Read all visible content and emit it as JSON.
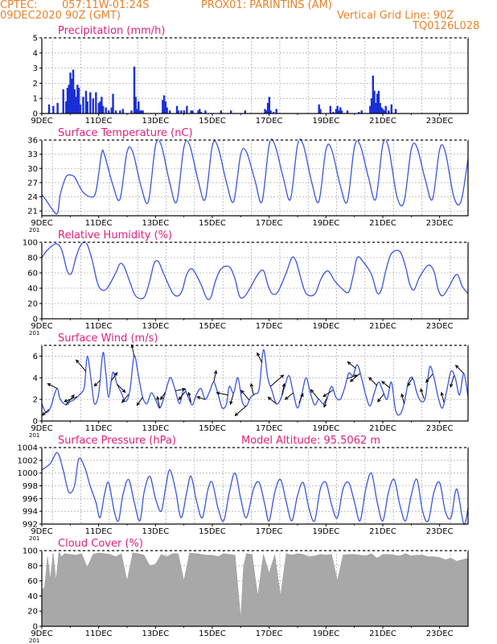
{
  "header": {
    "source": "CPTEC:",
    "coords": "057:11W-01:24S",
    "location": "PROX01: PARINTINS (AM)",
    "datetime": "09DEC2020 90Z (GMT)",
    "grid_note": "Vertical Grid Line: 90Z",
    "code": "TQ0126L028"
  },
  "colors": {
    "line": "#3a55e0",
    "bar": "#1a2fd6",
    "cloud": "#a8a8a8",
    "title": "#e0207a",
    "header": "#e8822a"
  },
  "x_tick_labels": [
    "9DEC",
    "11DEC",
    "13DEC",
    "15DEC",
    "17DEC",
    "19DEC",
    "21DEC",
    "23DEC"
  ],
  "x_fragment": "201",
  "chart_data": [
    {
      "type": "bar",
      "title": "Precipitation (mm/h)",
      "ylim": [
        0,
        5
      ],
      "yticks": [
        0,
        1,
        2,
        3,
        4,
        5
      ],
      "grid": true,
      "x_unit": "days since 09DEC 00Z",
      "x_range": [
        0,
        15
      ],
      "x": [
        0.25,
        0.4,
        0.55,
        0.75,
        0.85,
        0.9,
        0.95,
        1.0,
        1.05,
        1.1,
        1.15,
        1.2,
        1.25,
        1.3,
        1.35,
        1.45,
        1.55,
        1.6,
        1.7,
        1.8,
        1.9,
        2.0,
        2.05,
        2.1,
        2.15,
        2.25,
        2.35,
        2.45,
        2.5,
        2.6,
        2.75,
        2.85,
        3.15,
        3.25,
        3.3,
        3.35,
        3.4,
        3.45,
        3.5,
        3.55,
        4.25,
        4.3,
        4.35,
        4.4,
        4.5,
        4.75,
        4.8,
        4.9,
        5.0,
        5.1,
        5.25,
        5.3,
        5.5,
        5.55,
        5.6,
        5.75,
        6.3,
        6.65,
        7.15,
        7.85,
        7.9,
        7.95,
        8.0,
        8.05,
        8.15,
        8.25,
        9.75,
        9.8,
        10.15,
        10.25,
        10.35,
        10.4,
        10.45,
        10.5,
        10.55,
        10.75,
        11.15,
        11.25,
        11.55,
        11.6,
        11.65,
        11.7,
        11.75,
        11.8,
        11.85,
        11.9,
        11.95,
        12.0,
        12.05,
        12.1,
        12.2,
        12.3,
        12.45
      ],
      "values": [
        0.6,
        0.5,
        0.7,
        1.6,
        0.8,
        1.7,
        1.9,
        2.7,
        2.3,
        2.9,
        1.6,
        1.1,
        1.9,
        1.7,
        0.6,
        1.1,
        1.5,
        0.8,
        1.4,
        1.0,
        1.4,
        0.7,
        0.8,
        1.1,
        0.5,
        0.4,
        0.2,
        0.4,
        1.3,
        0.2,
        0.2,
        0.3,
        0.2,
        3.1,
        1.1,
        0.3,
        0.8,
        0.2,
        0.2,
        0.2,
        0.9,
        1.2,
        0.8,
        0.4,
        0.2,
        0.5,
        0.2,
        0.2,
        0.2,
        0.5,
        0.2,
        0.2,
        0.2,
        0.3,
        0.1,
        0.2,
        0.2,
        0.2,
        0.2,
        0.3,
        0.2,
        0.7,
        1.1,
        0.2,
        0.1,
        0.3,
        0.6,
        0.3,
        0.5,
        0.1,
        0.3,
        0.5,
        0.2,
        0.4,
        0.2,
        0.2,
        0.1,
        0.2,
        0.5,
        1.0,
        2.5,
        1.5,
        0.7,
        1.3,
        1.5,
        0.7,
        0.4,
        0.3,
        0.2,
        0.5,
        0.2,
        0.6,
        0.3
      ]
    },
    {
      "type": "line",
      "title": "Surface Temperature (nC)",
      "ylim": [
        20,
        36
      ],
      "yticks": [
        21,
        24,
        27,
        30,
        33,
        36
      ],
      "grid": true,
      "x_unit": "days since 09DEC 00Z",
      "x": [
        0.0,
        0.15,
        0.35,
        0.55,
        0.65,
        0.85,
        1.0,
        1.15,
        1.3,
        1.45,
        1.7,
        1.9,
        2.1,
        2.2,
        2.5,
        2.75,
        3.0,
        3.2,
        3.5,
        3.75,
        4.0,
        4.2,
        4.5,
        4.75,
        5.0,
        5.2,
        5.5,
        5.75,
        6.0,
        6.2,
        6.5,
        6.75,
        7.0,
        7.2,
        7.5,
        7.75,
        8.0,
        8.2,
        8.5,
        8.75,
        9.0,
        9.2,
        9.5,
        9.75,
        10.0,
        10.2,
        10.5,
        10.75,
        11.0,
        11.2,
        11.5,
        11.75,
        12.0,
        12.2,
        12.5,
        12.75,
        13.0,
        13.2,
        13.5,
        13.75,
        14.0,
        14.2,
        14.5,
        14.75,
        15.0
      ],
      "values": [
        24.5,
        23.3,
        21.5,
        20.5,
        24.5,
        28.2,
        28.6,
        28.2,
        26.5,
        25.0,
        24.0,
        25.0,
        33.0,
        33.0,
        26.5,
        23.5,
        33.5,
        33.5,
        26.0,
        23.0,
        34.8,
        35.0,
        27.0,
        23.0,
        34.5,
        35.0,
        27.5,
        23.5,
        34.8,
        34.5,
        27.0,
        23.0,
        33.0,
        33.5,
        27.5,
        23.0,
        35.0,
        35.0,
        28.0,
        23.5,
        35.0,
        35.0,
        27.0,
        23.0,
        34.0,
        34.0,
        26.5,
        23.0,
        34.5,
        35.0,
        28.0,
        23.5,
        35.0,
        34.5,
        24.0,
        23.0,
        34.0,
        34.5,
        27.5,
        23.5,
        34.0,
        33.5,
        24.0,
        23.0,
        32.0
      ]
    },
    {
      "type": "line",
      "title": "Relative Humidity (%)",
      "ylim": [
        0,
        100
      ],
      "yticks": [
        0,
        20,
        40,
        60,
        80,
        100
      ],
      "grid": true,
      "x_unit": "days since 09DEC 00Z",
      "x": [
        0.0,
        0.2,
        0.5,
        0.7,
        0.9,
        1.05,
        1.2,
        1.35,
        1.55,
        1.75,
        1.95,
        2.1,
        2.3,
        2.6,
        2.75,
        2.9,
        3.1,
        3.3,
        3.6,
        3.8,
        3.95,
        4.1,
        4.3,
        4.6,
        4.8,
        4.95,
        5.1,
        5.3,
        5.6,
        5.8,
        5.95,
        6.1,
        6.3,
        6.6,
        6.8,
        6.95,
        7.1,
        7.3,
        7.6,
        7.8,
        7.95,
        8.1,
        8.3,
        8.6,
        8.8,
        8.95,
        9.1,
        9.3,
        9.6,
        9.8,
        9.95,
        10.1,
        10.3,
        10.6,
        10.8,
        10.95,
        11.1,
        11.3,
        11.6,
        11.8,
        11.95,
        12.1,
        12.3,
        12.6,
        12.8,
        12.95,
        13.1,
        13.3,
        13.6,
        13.8,
        13.95,
        14.1,
        14.3,
        14.6,
        14.8,
        15.0
      ],
      "values": [
        80,
        90,
        98,
        90,
        62,
        60,
        80,
        95,
        100,
        80,
        48,
        38,
        40,
        60,
        72,
        68,
        48,
        30,
        28,
        50,
        72,
        75,
        58,
        34,
        30,
        38,
        58,
        65,
        45,
        27,
        28,
        48,
        65,
        68,
        52,
        30,
        28,
        38,
        58,
        63,
        45,
        33,
        35,
        60,
        80,
        75,
        55,
        33,
        32,
        50,
        60,
        62,
        50,
        38,
        35,
        55,
        80,
        75,
        58,
        34,
        38,
        62,
        85,
        88,
        68,
        45,
        38,
        55,
        70,
        62,
        38,
        30,
        40,
        58,
        42,
        33
      ]
    },
    {
      "type": "line",
      "title": "Surface Wind (m/s)",
      "ylim": [
        0,
        7
      ],
      "yticks": [
        0,
        2,
        4,
        6
      ],
      "grid": true,
      "x_unit": "days since 09DEC 00Z",
      "x": [
        0.0,
        0.15,
        0.3,
        0.45,
        0.55,
        0.65,
        0.85,
        1.0,
        1.15,
        1.35,
        1.5,
        1.6,
        1.75,
        1.85,
        2.0,
        2.15,
        2.25,
        2.35,
        2.5,
        2.65,
        2.8,
        2.95,
        3.1,
        3.25,
        3.4,
        3.55,
        3.7,
        3.85,
        4.0,
        4.15,
        4.3,
        4.45,
        4.55,
        4.7,
        4.85,
        5.0,
        5.15,
        5.3,
        5.45,
        5.6,
        5.75,
        5.9,
        6.05,
        6.2,
        6.35,
        6.5,
        6.6,
        6.75,
        6.9,
        7.05,
        7.2,
        7.35,
        7.5,
        7.65,
        7.8,
        7.95,
        8.1,
        8.25,
        8.4,
        8.55,
        8.7,
        8.85,
        9.0,
        9.15,
        9.3,
        9.45,
        9.6,
        9.75,
        9.9,
        10.05,
        10.2,
        10.35,
        10.5,
        10.65,
        10.8,
        10.95,
        11.1,
        11.25,
        11.4,
        11.55,
        11.7,
        11.85,
        12.0,
        12.15,
        12.3,
        12.45,
        12.6,
        12.75,
        12.9,
        13.05,
        13.2,
        13.35,
        13.5,
        13.65,
        13.8,
        13.95,
        14.1,
        14.25,
        14.4,
        14.55,
        14.7,
        14.85,
        15.0
      ],
      "values": [
        1.6,
        0.8,
        1.2,
        2.5,
        3.0,
        2.0,
        1.5,
        1.8,
        2.0,
        2.5,
        3.2,
        6.0,
        3.5,
        1.6,
        2.5,
        6.3,
        4.5,
        2.2,
        4.5,
        3.4,
        2.6,
        1.8,
        2.8,
        6.0,
        4.2,
        2.2,
        1.6,
        2.6,
        2.0,
        1.2,
        2.2,
        3.6,
        4.0,
        2.8,
        1.6,
        3.0,
        2.2,
        1.5,
        2.5,
        3.0,
        2.0,
        2.7,
        3.6,
        2.5,
        1.2,
        1.6,
        3.2,
        2.6,
        4.0,
        1.8,
        1.4,
        2.2,
        2.5,
        3.0,
        6.6,
        4.0,
        2.8,
        1.6,
        2.0,
        3.2,
        4.2,
        2.6,
        1.2,
        2.5,
        4.0,
        2.6,
        1.5,
        2.0,
        1.6,
        2.2,
        3.2,
        2.2,
        2.0,
        3.0,
        4.4,
        4.2,
        5.2,
        4.0,
        2.4,
        1.4,
        2.6,
        3.6,
        2.8,
        2.0,
        3.6,
        1.0,
        0.6,
        1.6,
        3.6,
        4.0,
        2.6,
        1.8,
        2.2,
        5.0,
        4.0,
        2.2,
        1.2,
        2.8,
        4.6,
        4.0,
        2.4,
        4.4,
        2.2
      ]
    },
    {
      "type": "line",
      "title": "Surface Pressure (hPa)",
      "annotation": "Model Altitude: 95.5062 m",
      "ylim": [
        992,
        1004
      ],
      "yticks": [
        992,
        994,
        996,
        998,
        1000,
        1002,
        1004
      ],
      "grid": true,
      "x_unit": "days since 09DEC 00Z",
      "x": [
        0.0,
        0.3,
        0.55,
        0.75,
        0.95,
        1.15,
        1.3,
        1.5,
        1.7,
        1.9,
        2.05,
        2.2,
        2.35,
        2.55,
        2.7,
        2.85,
        3.05,
        3.25,
        3.45,
        3.6,
        3.8,
        4.0,
        4.2,
        4.35,
        4.5,
        4.7,
        4.9,
        5.1,
        5.25,
        5.45,
        5.65,
        5.85,
        6.0,
        6.2,
        6.4,
        6.6,
        6.8,
        7.0,
        7.2,
        7.45,
        7.65,
        7.85,
        8.0,
        8.2,
        8.4,
        8.6,
        8.8,
        9.0,
        9.2,
        9.4,
        9.6,
        9.8,
        10.0,
        10.2,
        10.4,
        10.6,
        10.8,
        11.0,
        11.2,
        11.4,
        11.6,
        11.8,
        12.0,
        12.2,
        12.4,
        12.6,
        12.8,
        13.0,
        13.2,
        13.4,
        13.6,
        13.8,
        14.0,
        14.2,
        14.4,
        14.6,
        14.85,
        15.0
      ],
      "values": [
        1000.5,
        1001.5,
        1003.2,
        1000.5,
        997.0,
        998.0,
        1002.2,
        1001.0,
        998.0,
        995.5,
        993.0,
        996.5,
        998.5,
        994.0,
        992.5,
        996.5,
        999.0,
        995.5,
        992.5,
        997.0,
        999.5,
        996.0,
        994.0,
        997.5,
        1000.5,
        997.5,
        993.0,
        997.0,
        999.5,
        995.5,
        993.0,
        997.5,
        998.5,
        994.5,
        992.5,
        997.0,
        1000.0,
        996.0,
        993.0,
        997.5,
        998.5,
        995.0,
        992.5,
        997.0,
        999.0,
        995.5,
        992.5,
        996.5,
        998.5,
        994.5,
        992.5,
        997.5,
        998.5,
        995.0,
        993.0,
        997.5,
        998.5,
        995.5,
        992.5,
        997.5,
        1000.0,
        995.5,
        992.5,
        997.0,
        999.0,
        995.0,
        992.5,
        996.5,
        999.0,
        994.0,
        992.5,
        997.0,
        998.5,
        994.0,
        993.0,
        997.5,
        992.0,
        994.5
      ]
    },
    {
      "type": "area",
      "title": "Cloud Cover (%)",
      "ylim": [
        0,
        100
      ],
      "yticks": [
        0,
        20,
        40,
        60,
        80,
        100
      ],
      "grid": true,
      "x_unit": "days since 09DEC 00Z",
      "x": [
        0.0,
        0.1,
        0.2,
        0.3,
        0.4,
        0.5,
        0.6,
        0.7,
        0.8,
        1.0,
        1.2,
        1.4,
        1.6,
        1.8,
        2.0,
        2.2,
        2.4,
        2.6,
        2.8,
        3.0,
        3.2,
        3.4,
        3.6,
        3.8,
        4.0,
        4.2,
        4.4,
        4.6,
        4.8,
        5.0,
        5.2,
        5.4,
        5.5,
        5.6,
        5.8,
        6.0,
        6.2,
        6.4,
        6.6,
        6.8,
        7.0,
        7.1,
        7.2,
        7.4,
        7.6,
        7.8,
        8.0,
        8.2,
        8.4,
        8.6,
        8.8,
        9.0,
        9.2,
        9.4,
        9.6,
        9.8,
        10.0,
        10.2,
        10.4,
        10.6,
        10.8,
        11.0,
        11.2,
        11.4,
        11.6,
        11.8,
        12.0,
        12.2,
        12.4,
        12.6,
        12.8,
        13.0,
        13.2,
        13.4,
        13.6,
        13.8,
        14.0,
        14.2,
        14.4,
        14.6,
        14.8,
        15.0
      ],
      "values": [
        48,
        52,
        92,
        62,
        96,
        60,
        98,
        92,
        96,
        95,
        94,
        96,
        78,
        95,
        97,
        96,
        95,
        92,
        96,
        60,
        97,
        96,
        94,
        80,
        82,
        95,
        92,
        96,
        96,
        60,
        97,
        96,
        96,
        95,
        94,
        94,
        92,
        96,
        95,
        94,
        10,
        80,
        96,
        95,
        40,
        95,
        70,
        95,
        40,
        96,
        94,
        96,
        95,
        92,
        93,
        95,
        94,
        95,
        60,
        94,
        95,
        95,
        94,
        93,
        96,
        90,
        95,
        95,
        94,
        93,
        96,
        93,
        94,
        94,
        92,
        92,
        91,
        88,
        90,
        86,
        88,
        90
      ]
    }
  ],
  "wind_arrows": [
    {
      "t": 0.25,
      "dx": -8,
      "dy": 7
    },
    {
      "t": 0.55,
      "dx": -12,
      "dy": -6
    },
    {
      "t": 0.85,
      "dx": 10,
      "dy": -12
    },
    {
      "t": 1.25,
      "dx": -16,
      "dy": 6
    },
    {
      "t": 1.55,
      "dx": -12,
      "dy": -14
    },
    {
      "t": 2.05,
      "dx": -7,
      "dy": 7
    },
    {
      "t": 2.45,
      "dx": 7,
      "dy": -10
    },
    {
      "t": 2.65,
      "dx": 10,
      "dy": 10
    },
    {
      "t": 3.05,
      "dx": -8,
      "dy": 10
    },
    {
      "t": 3.25,
      "dx": -3,
      "dy": -14
    },
    {
      "t": 3.55,
      "dx": -7,
      "dy": 10
    },
    {
      "t": 4.15,
      "dx": -3,
      "dy": -14
    },
    {
      "t": 4.35,
      "dx": -6,
      "dy": 9
    },
    {
      "t": 4.7,
      "dx": 12,
      "dy": -2
    },
    {
      "t": 5.05,
      "dx": -8,
      "dy": 10
    },
    {
      "t": 5.25,
      "dx": -3,
      "dy": -12
    },
    {
      "t": 5.75,
      "dx": -10,
      "dy": -3
    },
    {
      "t": 6.05,
      "dx": 3,
      "dy": -14
    },
    {
      "t": 6.55,
      "dx": -14,
      "dy": -3
    },
    {
      "t": 6.75,
      "dx": -4,
      "dy": 14
    },
    {
      "t": 7.2,
      "dx": -14,
      "dy": 12
    },
    {
      "t": 7.3,
      "dx": -10,
      "dy": -12
    },
    {
      "t": 7.45,
      "dx": -3,
      "dy": -14
    },
    {
      "t": 7.75,
      "dx": -6,
      "dy": -12
    },
    {
      "t": 8.05,
      "dx": 16,
      "dy": -14
    },
    {
      "t": 8.25,
      "dx": -10,
      "dy": -8
    },
    {
      "t": 8.45,
      "dx": 3,
      "dy": -14
    },
    {
      "t": 8.85,
      "dx": -10,
      "dy": 8
    },
    {
      "t": 9.05,
      "dx": 5,
      "dy": -12
    },
    {
      "t": 9.75,
      "dx": -10,
      "dy": -12
    },
    {
      "t": 10.05,
      "dx": -4,
      "dy": 12
    },
    {
      "t": 10.25,
      "dx": -12,
      "dy": 8
    },
    {
      "t": 10.75,
      "dx": 12,
      "dy": -4
    },
    {
      "t": 11.05,
      "dx": -10,
      "dy": -8
    },
    {
      "t": 11.2,
      "dx": -12,
      "dy": 10
    },
    {
      "t": 11.8,
      "dx": -10,
      "dy": -10
    },
    {
      "t": 12.05,
      "dx": -8,
      "dy": 10
    },
    {
      "t": 12.25,
      "dx": -10,
      "dy": -8
    },
    {
      "t": 12.75,
      "dx": -3,
      "dy": -12
    },
    {
      "t": 13.05,
      "dx": -6,
      "dy": 10
    },
    {
      "t": 13.45,
      "dx": -4,
      "dy": -12
    },
    {
      "t": 13.75,
      "dx": -8,
      "dy": 10
    },
    {
      "t": 14.15,
      "dx": -3,
      "dy": -12
    },
    {
      "t": 14.5,
      "dx": -4,
      "dy": 14
    },
    {
      "t": 14.85,
      "dx": -10,
      "dy": -10
    }
  ]
}
